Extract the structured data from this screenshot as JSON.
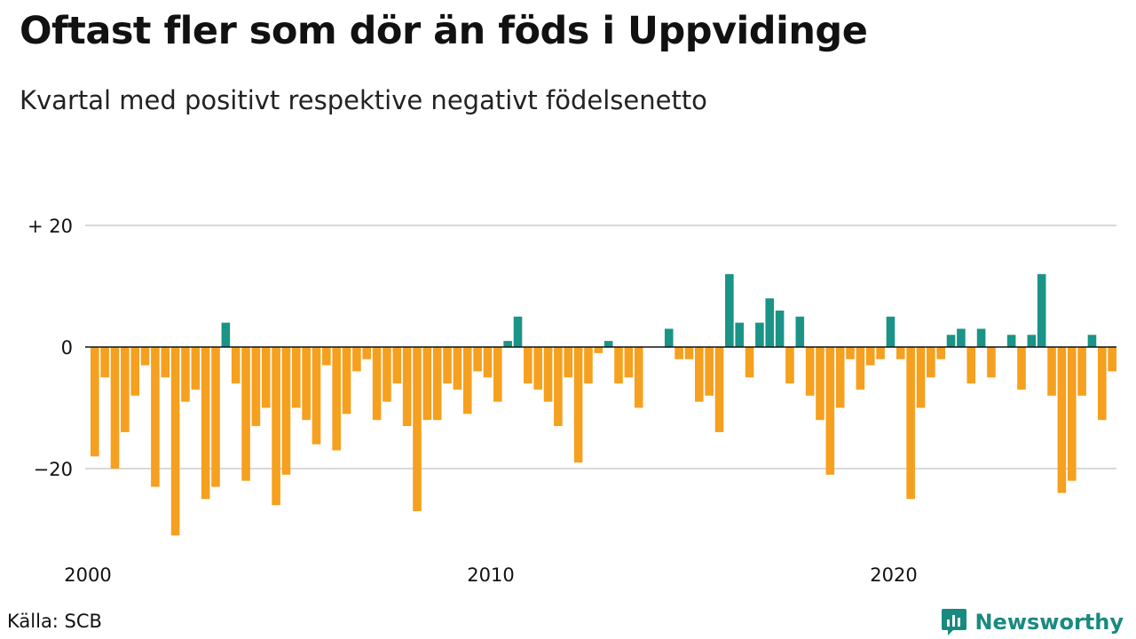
{
  "header": {
    "title": "Oftast fler som dör än föds i Uppvidinge",
    "subtitle": "Kvartal med positivt respektive negativt födelsenetto"
  },
  "footer": {
    "source": "Källa: SCB",
    "brand": "Newsworthy"
  },
  "colors": {
    "positive": "#1a9487",
    "negative": "#f5a01f",
    "grid": "#d9d9d9",
    "zero_line": "#111111",
    "brand": "#1a8a80"
  },
  "chart_data": {
    "type": "bar",
    "ylim": [
      -32,
      20
    ],
    "y_ticks": [
      20,
      0,
      -20
    ],
    "y_tick_labels": [
      "+ 20",
      "0",
      "−20"
    ],
    "x_tick_labels": [
      "2000",
      "2010",
      "2020"
    ],
    "grid": true,
    "first_quarter": "2000 Q1",
    "values": [
      -18,
      -5,
      -20,
      -14,
      -8,
      -3,
      -23,
      -5,
      -31,
      -9,
      -7,
      -25,
      -23,
      4,
      -6,
      -22,
      -13,
      -10,
      -26,
      -21,
      -10,
      -12,
      -16,
      -3,
      -17,
      -11,
      -4,
      -2,
      -12,
      -9,
      -6,
      -13,
      -27,
      -12,
      -12,
      -6,
      -7,
      -11,
      -4,
      -5,
      -9,
      1,
      5,
      -6,
      -7,
      -9,
      -13,
      -5,
      -19,
      -6,
      -1,
      1,
      -6,
      -5,
      -10,
      0,
      0,
      3,
      -2,
      -2,
      -9,
      -8,
      -14,
      12,
      4,
      -5,
      4,
      8,
      6,
      -6,
      5,
      -8,
      -12,
      -21,
      -10,
      -2,
      -7,
      -3,
      -2,
      5,
      -2,
      -25,
      -10,
      -5,
      -2,
      2,
      3,
      -6,
      3,
      -5,
      0,
      2,
      -7,
      2,
      12,
      -8,
      -24,
      -22,
      -8,
      2,
      -12,
      -4
    ]
  }
}
